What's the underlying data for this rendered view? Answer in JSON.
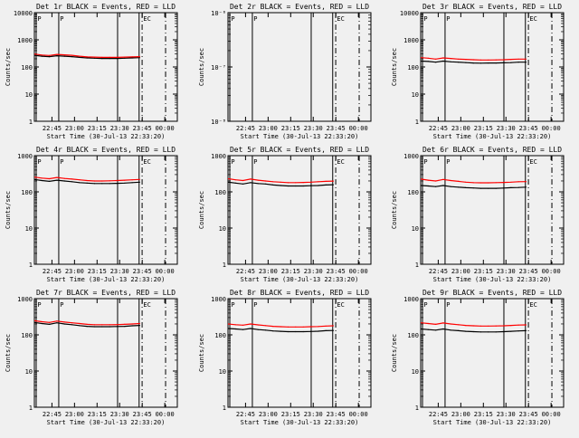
{
  "figure": {
    "background": "#f0f0f0",
    "events_color": "#000000",
    "lld_color": "#ff0000",
    "x_label": "Start Time (30-Jul-13 22:33:20)",
    "y_label": "Counts/sec",
    "x_ticks": [
      "22:45",
      "23:00",
      "23:15",
      "23:30",
      "23:45",
      "00:00"
    ],
    "x_tick_minutes": [
      11.67,
      26.67,
      41.67,
      56.67,
      71.67,
      86.67
    ],
    "x_range_minutes": [
      0,
      95
    ]
  },
  "chart_data": [
    {
      "title": "Det 1r BLACK = Events, RED = LLD",
      "type": "line",
      "y_scale": "log",
      "ylim": [
        1,
        10000
      ],
      "y_ticks": [
        "1",
        "10",
        "100",
        "1000",
        "10000"
      ],
      "flag_labels": [
        "P",
        "P",
        "EC"
      ],
      "x": [
        0,
        5,
        10,
        15,
        20,
        25,
        30,
        35,
        40,
        45,
        50,
        55,
        60,
        65,
        70
      ],
      "series": [
        {
          "color": "#000000",
          "values": [
            270,
            250,
            240,
            260,
            250,
            240,
            225,
            215,
            210,
            205,
            205,
            205,
            210,
            215,
            220
          ]
        },
        {
          "color": "#ff0000",
          "values": [
            300,
            275,
            265,
            290,
            280,
            270,
            250,
            235,
            230,
            225,
            225,
            225,
            230,
            235,
            240
          ]
        }
      ]
    },
    {
      "title": "Det 2r BLACK = Events, RED = LLD",
      "type": "line",
      "y_scale": "log",
      "ylim": [
        1e-08,
        1e-06
      ],
      "y_ticks": [
        "10⁻⁸",
        "10⁻⁷",
        "10⁻⁶"
      ],
      "flag_labels": [
        "P",
        "P",
        "EC"
      ],
      "x": [],
      "series": []
    },
    {
      "title": "Det 3r BLACK = Events, RED = LLD",
      "type": "line",
      "y_scale": "log",
      "ylim": [
        1,
        10000
      ],
      "y_ticks": [
        "1",
        "10",
        "100",
        "1000",
        "10000"
      ],
      "flag_labels": [
        "P",
        "P",
        "EC"
      ],
      "x": [
        0,
        5,
        10,
        15,
        20,
        25,
        30,
        35,
        40,
        45,
        50,
        55,
        60,
        65,
        70
      ],
      "series": [
        {
          "color": "#000000",
          "values": [
            165,
            160,
            150,
            165,
            155,
            150,
            145,
            140,
            138,
            140,
            140,
            142,
            145,
            150,
            150
          ]
        },
        {
          "color": "#ff0000",
          "values": [
            220,
            210,
            195,
            215,
            205,
            195,
            190,
            185,
            180,
            180,
            182,
            185,
            190,
            195,
            195
          ]
        }
      ]
    },
    {
      "title": "Det 4r BLACK = Events, RED = LLD",
      "type": "line",
      "y_scale": "log",
      "ylim": [
        1,
        1000
      ],
      "y_ticks": [
        "1",
        "10",
        "100",
        "1000"
      ],
      "flag_labels": [
        "P",
        "P",
        "EC"
      ],
      "x": [
        0,
        5,
        10,
        15,
        20,
        25,
        30,
        35,
        40,
        45,
        50,
        55,
        60,
        65,
        70
      ],
      "series": [
        {
          "color": "#000000",
          "values": [
            220,
            205,
            195,
            210,
            200,
            190,
            180,
            175,
            170,
            170,
            170,
            172,
            175,
            180,
            185
          ]
        },
        {
          "color": "#ff0000",
          "values": [
            255,
            240,
            230,
            250,
            235,
            225,
            215,
            205,
            200,
            200,
            202,
            205,
            210,
            215,
            220
          ]
        }
      ]
    },
    {
      "title": "Det 5r BLACK = Events, RED = LLD",
      "type": "line",
      "y_scale": "log",
      "ylim": [
        1,
        1000
      ],
      "y_ticks": [
        "1",
        "10",
        "100",
        "1000"
      ],
      "flag_labels": [
        "P",
        "P",
        "EC"
      ],
      "x": [
        0,
        5,
        10,
        15,
        20,
        25,
        30,
        35,
        40,
        45,
        50,
        55,
        60,
        65,
        70
      ],
      "series": [
        {
          "color": "#000000",
          "values": [
            185,
            175,
            165,
            180,
            170,
            165,
            155,
            150,
            145,
            145,
            145,
            148,
            150,
            155,
            158
          ]
        },
        {
          "color": "#ff0000",
          "values": [
            230,
            215,
            205,
            225,
            210,
            200,
            190,
            185,
            180,
            180,
            182,
            185,
            190,
            195,
            198
          ]
        }
      ]
    },
    {
      "title": "Det 6r BLACK = Events, RED = LLD",
      "type": "line",
      "y_scale": "log",
      "ylim": [
        1,
        1000
      ],
      "y_ticks": [
        "1",
        "10",
        "100",
        "1000"
      ],
      "flag_labels": [
        "P",
        "P",
        "EC"
      ],
      "x": [
        0,
        5,
        10,
        15,
        20,
        25,
        30,
        35,
        40,
        45,
        50,
        55,
        60,
        65,
        70
      ],
      "series": [
        {
          "color": "#000000",
          "values": [
            150,
            145,
            140,
            150,
            140,
            135,
            130,
            128,
            125,
            125,
            125,
            127,
            130,
            132,
            135
          ]
        },
        {
          "color": "#ff0000",
          "values": [
            225,
            210,
            200,
            220,
            205,
            195,
            185,
            180,
            178,
            178,
            180,
            182,
            185,
            190,
            192
          ]
        }
      ]
    },
    {
      "title": "Det 7r BLACK = Events, RED = LLD",
      "type": "line",
      "y_scale": "log",
      "ylim": [
        1,
        1000
      ],
      "y_ticks": [
        "1",
        "10",
        "100",
        "1000"
      ],
      "flag_labels": [
        "P",
        "P",
        "EC"
      ],
      "x": [
        0,
        5,
        10,
        15,
        20,
        25,
        30,
        35,
        40,
        45,
        50,
        55,
        60,
        65,
        70
      ],
      "series": [
        {
          "color": "#000000",
          "values": [
            220,
            205,
            195,
            215,
            200,
            190,
            180,
            172,
            168,
            168,
            168,
            170,
            172,
            178,
            182
          ]
        },
        {
          "color": "#ff0000",
          "values": [
            245,
            230,
            220,
            240,
            225,
            215,
            205,
            195,
            190,
            190,
            190,
            192,
            195,
            200,
            205
          ]
        }
      ]
    },
    {
      "title": "Det 8r BLACK = Events, RED = LLD",
      "type": "line",
      "y_scale": "log",
      "ylim": [
        1,
        1000
      ],
      "y_ticks": [
        "1",
        "10",
        "100",
        "1000"
      ],
      "flag_labels": [
        "P",
        "P",
        "EC"
      ],
      "x": [
        0,
        5,
        10,
        15,
        20,
        25,
        30,
        35,
        40,
        45,
        50,
        55,
        60,
        65,
        70
      ],
      "series": [
        {
          "color": "#000000",
          "values": [
            150,
            145,
            140,
            150,
            140,
            135,
            128,
            125,
            122,
            122,
            122,
            124,
            126,
            130,
            132
          ]
        },
        {
          "color": "#ff0000",
          "values": [
            200,
            190,
            185,
            200,
            188,
            180,
            172,
            168,
            165,
            165,
            165,
            168,
            170,
            175,
            178
          ]
        }
      ]
    },
    {
      "title": "Det 9r BLACK = Events, RED = LLD",
      "type": "line",
      "y_scale": "log",
      "ylim": [
        1,
        1000
      ],
      "y_ticks": [
        "1",
        "10",
        "100",
        "1000"
      ],
      "flag_labels": [
        "P",
        "P",
        "EC"
      ],
      "x": [
        0,
        5,
        10,
        15,
        20,
        25,
        30,
        35,
        40,
        45,
        50,
        55,
        60,
        65,
        70
      ],
      "series": [
        {
          "color": "#000000",
          "values": [
            145,
            140,
            135,
            145,
            135,
            130,
            125,
            122,
            120,
            120,
            120,
            122,
            125,
            128,
            130
          ]
        },
        {
          "color": "#ff0000",
          "values": [
            215,
            205,
            195,
            212,
            200,
            190,
            182,
            178,
            175,
            175,
            176,
            178,
            182,
            186,
            188
          ]
        }
      ]
    }
  ]
}
